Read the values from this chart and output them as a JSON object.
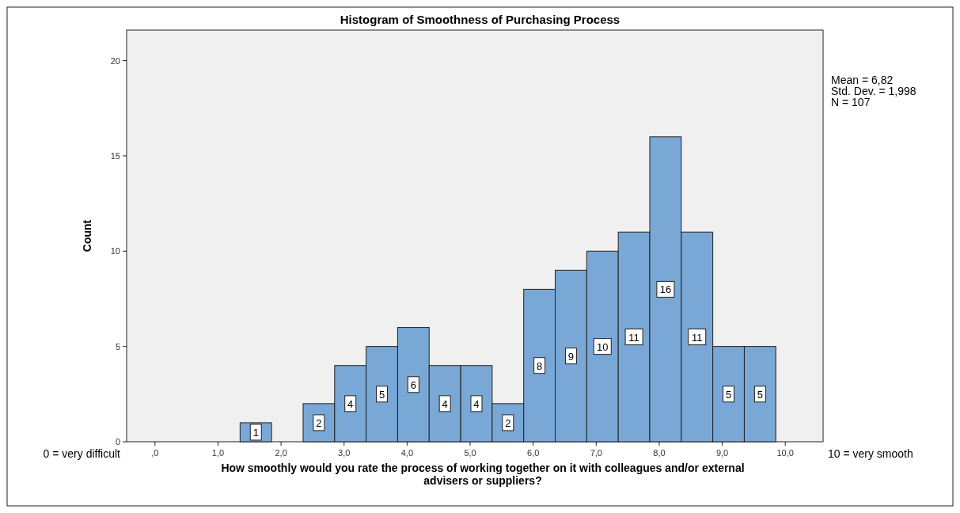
{
  "chart_data": {
    "type": "histogram",
    "title": "Histogram of Smoothness of Purchasing Process",
    "xlabel": "How smoothly would you rate the process of working together on it with colleagues and/or external advisers or suppliers?",
    "ylabel": "Count",
    "bins": [
      1.35,
      1.85,
      2.35,
      2.85,
      3.35,
      3.85,
      4.35,
      4.85,
      5.35,
      5.85,
      6.35,
      6.85,
      7.35,
      7.85,
      8.35,
      8.85,
      9.35,
      9.85
    ],
    "values": [
      1,
      0,
      2,
      4,
      5,
      6,
      4,
      4,
      2,
      8,
      9,
      10,
      11,
      16,
      11,
      5,
      5
    ],
    "value_labels": [
      "1",
      null,
      "2",
      "4",
      "5",
      "6",
      "4",
      "4",
      "2",
      "8",
      "9",
      "10",
      "11",
      "16",
      "11",
      "5",
      "5"
    ],
    "color": "#79a8d6",
    "xlim": [
      -0.45,
      10.6
    ],
    "ylim": [
      0,
      21.6
    ],
    "xticks": [
      {
        "value": 0,
        "label": ",0"
      },
      {
        "value": 1,
        "label": "1,0"
      },
      {
        "value": 2,
        "label": "2,0"
      },
      {
        "value": 3,
        "label": "3,0"
      },
      {
        "value": 4,
        "label": "4,0"
      },
      {
        "value": 5,
        "label": "5,0"
      },
      {
        "value": 6,
        "label": "6,0"
      },
      {
        "value": 7,
        "label": "7,0"
      },
      {
        "value": 8,
        "label": "8,0"
      },
      {
        "value": 9,
        "label": "9,0"
      },
      {
        "value": 10,
        "label": "10,0"
      }
    ],
    "yticks": [
      0,
      5,
      10,
      15,
      20
    ],
    "grid": false,
    "annotations": [
      "0 = very difficult",
      "10 = very smooth",
      "Mean = 6,82\nStd. Dev. = 1,998\nN = 107"
    ]
  }
}
